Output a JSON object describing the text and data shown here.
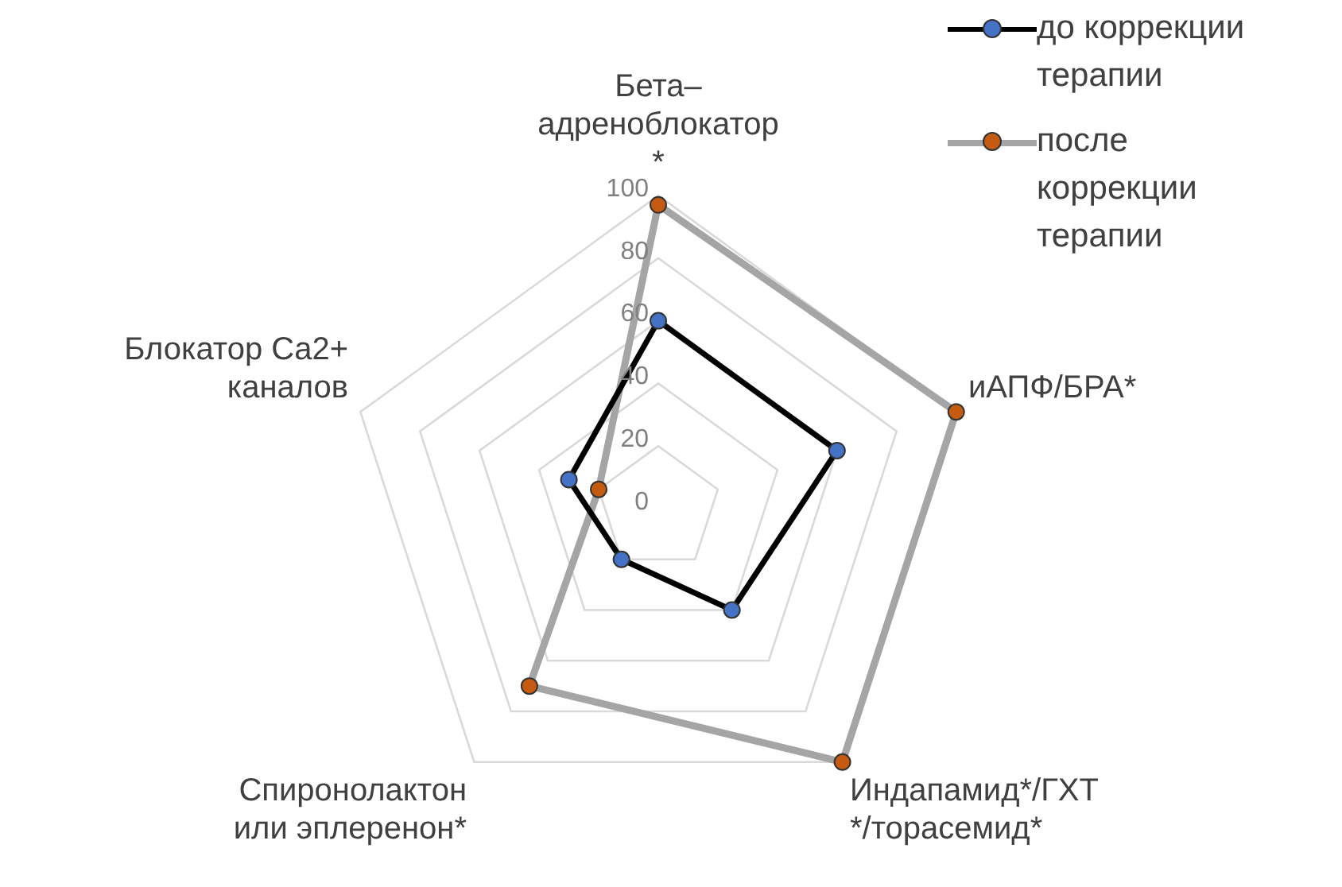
{
  "chart_data": {
    "type": "radar",
    "categories": [
      "Бета–\nадреноблокатор\n*",
      "иАПФ/БРА*",
      "Индапамид*/ГХТ\n*/торасемид*",
      "Спиронолактон\nили эплеренон*",
      "Блокатор Ca2+\nканалов"
    ],
    "series": [
      {
        "name": "до коррекции\nтерапии",
        "color": "#000000",
        "colors": [
          "#4472c4",
          "#4472c4",
          "#4472c4",
          "#4472c4",
          "#4472c4"
        ],
        "values": [
          60,
          60,
          40,
          20,
          30
        ]
      },
      {
        "name": "после\nкоррекции\nтерапии",
        "color": "#a5a5a5",
        "colors": [
          "#c55a11",
          "#c55a11",
          "#c55a11",
          "#c55a11",
          "#c55a11"
        ],
        "values": [
          97,
          100,
          100,
          70,
          20
        ]
      }
    ],
    "ylim": [
      0,
      100
    ],
    "yticks": [
      0,
      20,
      40,
      60,
      80,
      100
    ],
    "grid": true,
    "legend": "top right",
    "marker": "circle",
    "line_style": "solid"
  }
}
